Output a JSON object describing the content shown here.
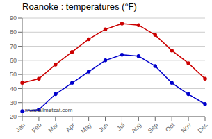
{
  "chart_data": {
    "type": "line",
    "title": "Roanoke : temperatures (°F)",
    "categories": [
      "Jan",
      "Feb",
      "Mar",
      "Apr",
      "May",
      "Jun",
      "Jul",
      "Aug",
      "Sep",
      "Oct",
      "Nov",
      "Dec"
    ],
    "series": [
      {
        "color": "#cc0000",
        "values": [
          44,
          47,
          57,
          66,
          75,
          82,
          86,
          85,
          78,
          67,
          58,
          47
        ]
      },
      {
        "color": "#0000cc",
        "values": [
          24,
          25,
          36,
          44,
          52,
          60,
          64,
          63,
          56,
          44,
          36,
          29
        ]
      }
    ],
    "ylim": [
      20,
      90
    ],
    "yticks": [
      20,
      30,
      40,
      50,
      60,
      70,
      80,
      90
    ],
    "grid": true,
    "marker": "circle",
    "annotations": [
      "www.allmetsat.com"
    ]
  }
}
